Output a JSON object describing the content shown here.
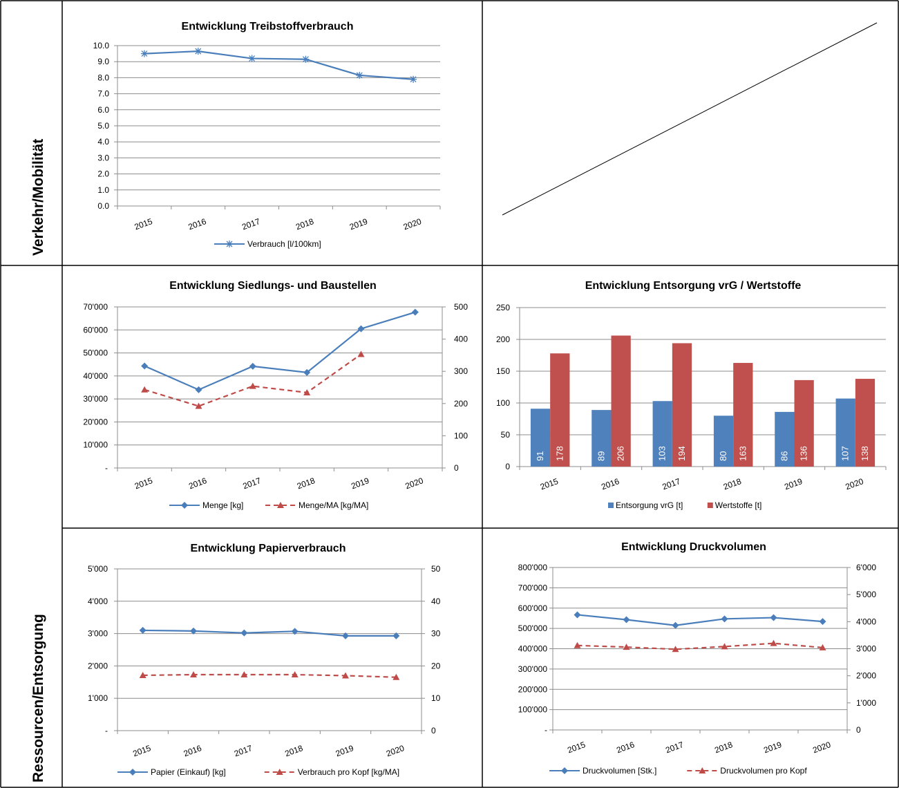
{
  "row_labels": {
    "verkehr": "Verkehr/Mobilität",
    "ressourcen": "Ressourcen/Entsorgung"
  },
  "colors": {
    "blue": "#4a7ebb",
    "red": "#be4b48",
    "bar_blue": "#4f81bd",
    "bar_red": "#c0504d"
  },
  "chart_data": [
    {
      "id": "fuel",
      "type": "line",
      "title": "Entwicklung Treibstoffverbrauch",
      "categories": [
        "2015",
        "2016",
        "2017",
        "2018",
        "2019",
        "2020"
      ],
      "ylim": [
        0,
        10
      ],
      "y_ticks": [
        "0.0",
        "1.0",
        "2.0",
        "3.0",
        "4.0",
        "5.0",
        "6.0",
        "7.0",
        "8.0",
        "9.0",
        "10.0"
      ],
      "legend": "bottom",
      "series": [
        {
          "name": "Verbrauch [l/100km]",
          "marker": "star",
          "color": "#4a7ebb",
          "values": [
            9.5,
            9.65,
            9.2,
            9.15,
            8.15,
            7.9
          ]
        }
      ]
    },
    {
      "id": "siedlung",
      "type": "line",
      "title": "Entwicklung Siedlungs- und Baustellen",
      "categories": [
        "2015",
        "2016",
        "2017",
        "2018",
        "2019",
        "2020"
      ],
      "ylim": [
        0,
        70000
      ],
      "y_ticks": [
        "-",
        "10'000",
        "20'000",
        "30'000",
        "40'000",
        "50'000",
        "60'000",
        "70'000"
      ],
      "y2lim": [
        0,
        500
      ],
      "y2_ticks": [
        "0",
        "100",
        "200",
        "300",
        "400",
        "500"
      ],
      "legend": "bottom",
      "series": [
        {
          "name": "Menge [kg]",
          "marker": "diamond",
          "axis": "left",
          "dashed": false,
          "color": "#4a7ebb",
          "values": [
            44300,
            34000,
            44200,
            41500,
            60500,
            67700
          ]
        },
        {
          "name": "Menge/MA [kg/MA]",
          "marker": "triangle",
          "axis": "right",
          "dashed": true,
          "color": "#be4b48",
          "values": [
            243,
            192,
            254,
            234,
            353,
            null
          ]
        }
      ]
    },
    {
      "id": "entsorgung",
      "type": "bar",
      "title": "Entwicklung Entsorgung vrG / Wertstoffe",
      "categories": [
        "2015",
        "2016",
        "2017",
        "2018",
        "2019",
        "2020"
      ],
      "ylim": [
        0,
        250
      ],
      "y_ticks": [
        "0",
        "50",
        "100",
        "150",
        "200",
        "250"
      ],
      "legend": "bottom",
      "series": [
        {
          "name": "Entsorgung vrG [t]",
          "color": "#4f81bd",
          "values": [
            91,
            89,
            103,
            80,
            86,
            107
          ]
        },
        {
          "name": "Wertstoffe [t]",
          "color": "#c0504d",
          "values": [
            178,
            206,
            194,
            163,
            136,
            138
          ]
        }
      ]
    },
    {
      "id": "papier",
      "type": "line",
      "title": "Entwicklung Papierverbrauch",
      "categories": [
        "2015",
        "2016",
        "2017",
        "2018",
        "2019",
        "2020"
      ],
      "ylim": [
        0,
        5000
      ],
      "y_ticks": [
        "-",
        "1'000",
        "2'000",
        "3'000",
        "4'000",
        "5'000"
      ],
      "y2lim": [
        0,
        50
      ],
      "y2_ticks": [
        "0",
        "10",
        "20",
        "30",
        "40",
        "50"
      ],
      "legend": "bottom",
      "series": [
        {
          "name": "Papier (Einkauf) [kg]",
          "marker": "diamond",
          "axis": "left",
          "dashed": false,
          "color": "#4a7ebb",
          "values": [
            3100,
            3080,
            3020,
            3070,
            2930,
            2930
          ]
        },
        {
          "name": "Verbrauch pro Kopf [kg/MA]",
          "marker": "triangle",
          "axis": "right",
          "dashed": true,
          "color": "#be4b48",
          "values": [
            17.1,
            17.3,
            17.3,
            17.3,
            17.0,
            16.5
          ]
        }
      ]
    },
    {
      "id": "druck",
      "type": "line",
      "title": "Entwicklung Druckvolumen",
      "categories": [
        "2015",
        "2016",
        "2017",
        "2018",
        "2019",
        "2020"
      ],
      "ylim": [
        0,
        800000
      ],
      "y_ticks": [
        "-",
        "100'000",
        "200'000",
        "300'000",
        "400'000",
        "500'000",
        "600'000",
        "700'000",
        "800'000"
      ],
      "y2lim": [
        0,
        6000
      ],
      "y2_ticks": [
        "0",
        "1'000",
        "2'000",
        "3'000",
        "4'000",
        "5'000",
        "6'000"
      ],
      "legend": "bottom",
      "series": [
        {
          "name": "Druckvolumen [Stk.]",
          "marker": "diamond",
          "axis": "left",
          "dashed": false,
          "color": "#4a7ebb",
          "values": [
            567000,
            543000,
            515000,
            547000,
            553000,
            534000
          ]
        },
        {
          "name": "Druckvolumen pro Kopf",
          "marker": "triangle",
          "axis": "right",
          "dashed": true,
          "color": "#be4b48",
          "values": [
            3120,
            3060,
            2980,
            3080,
            3200,
            3040
          ]
        }
      ]
    }
  ]
}
